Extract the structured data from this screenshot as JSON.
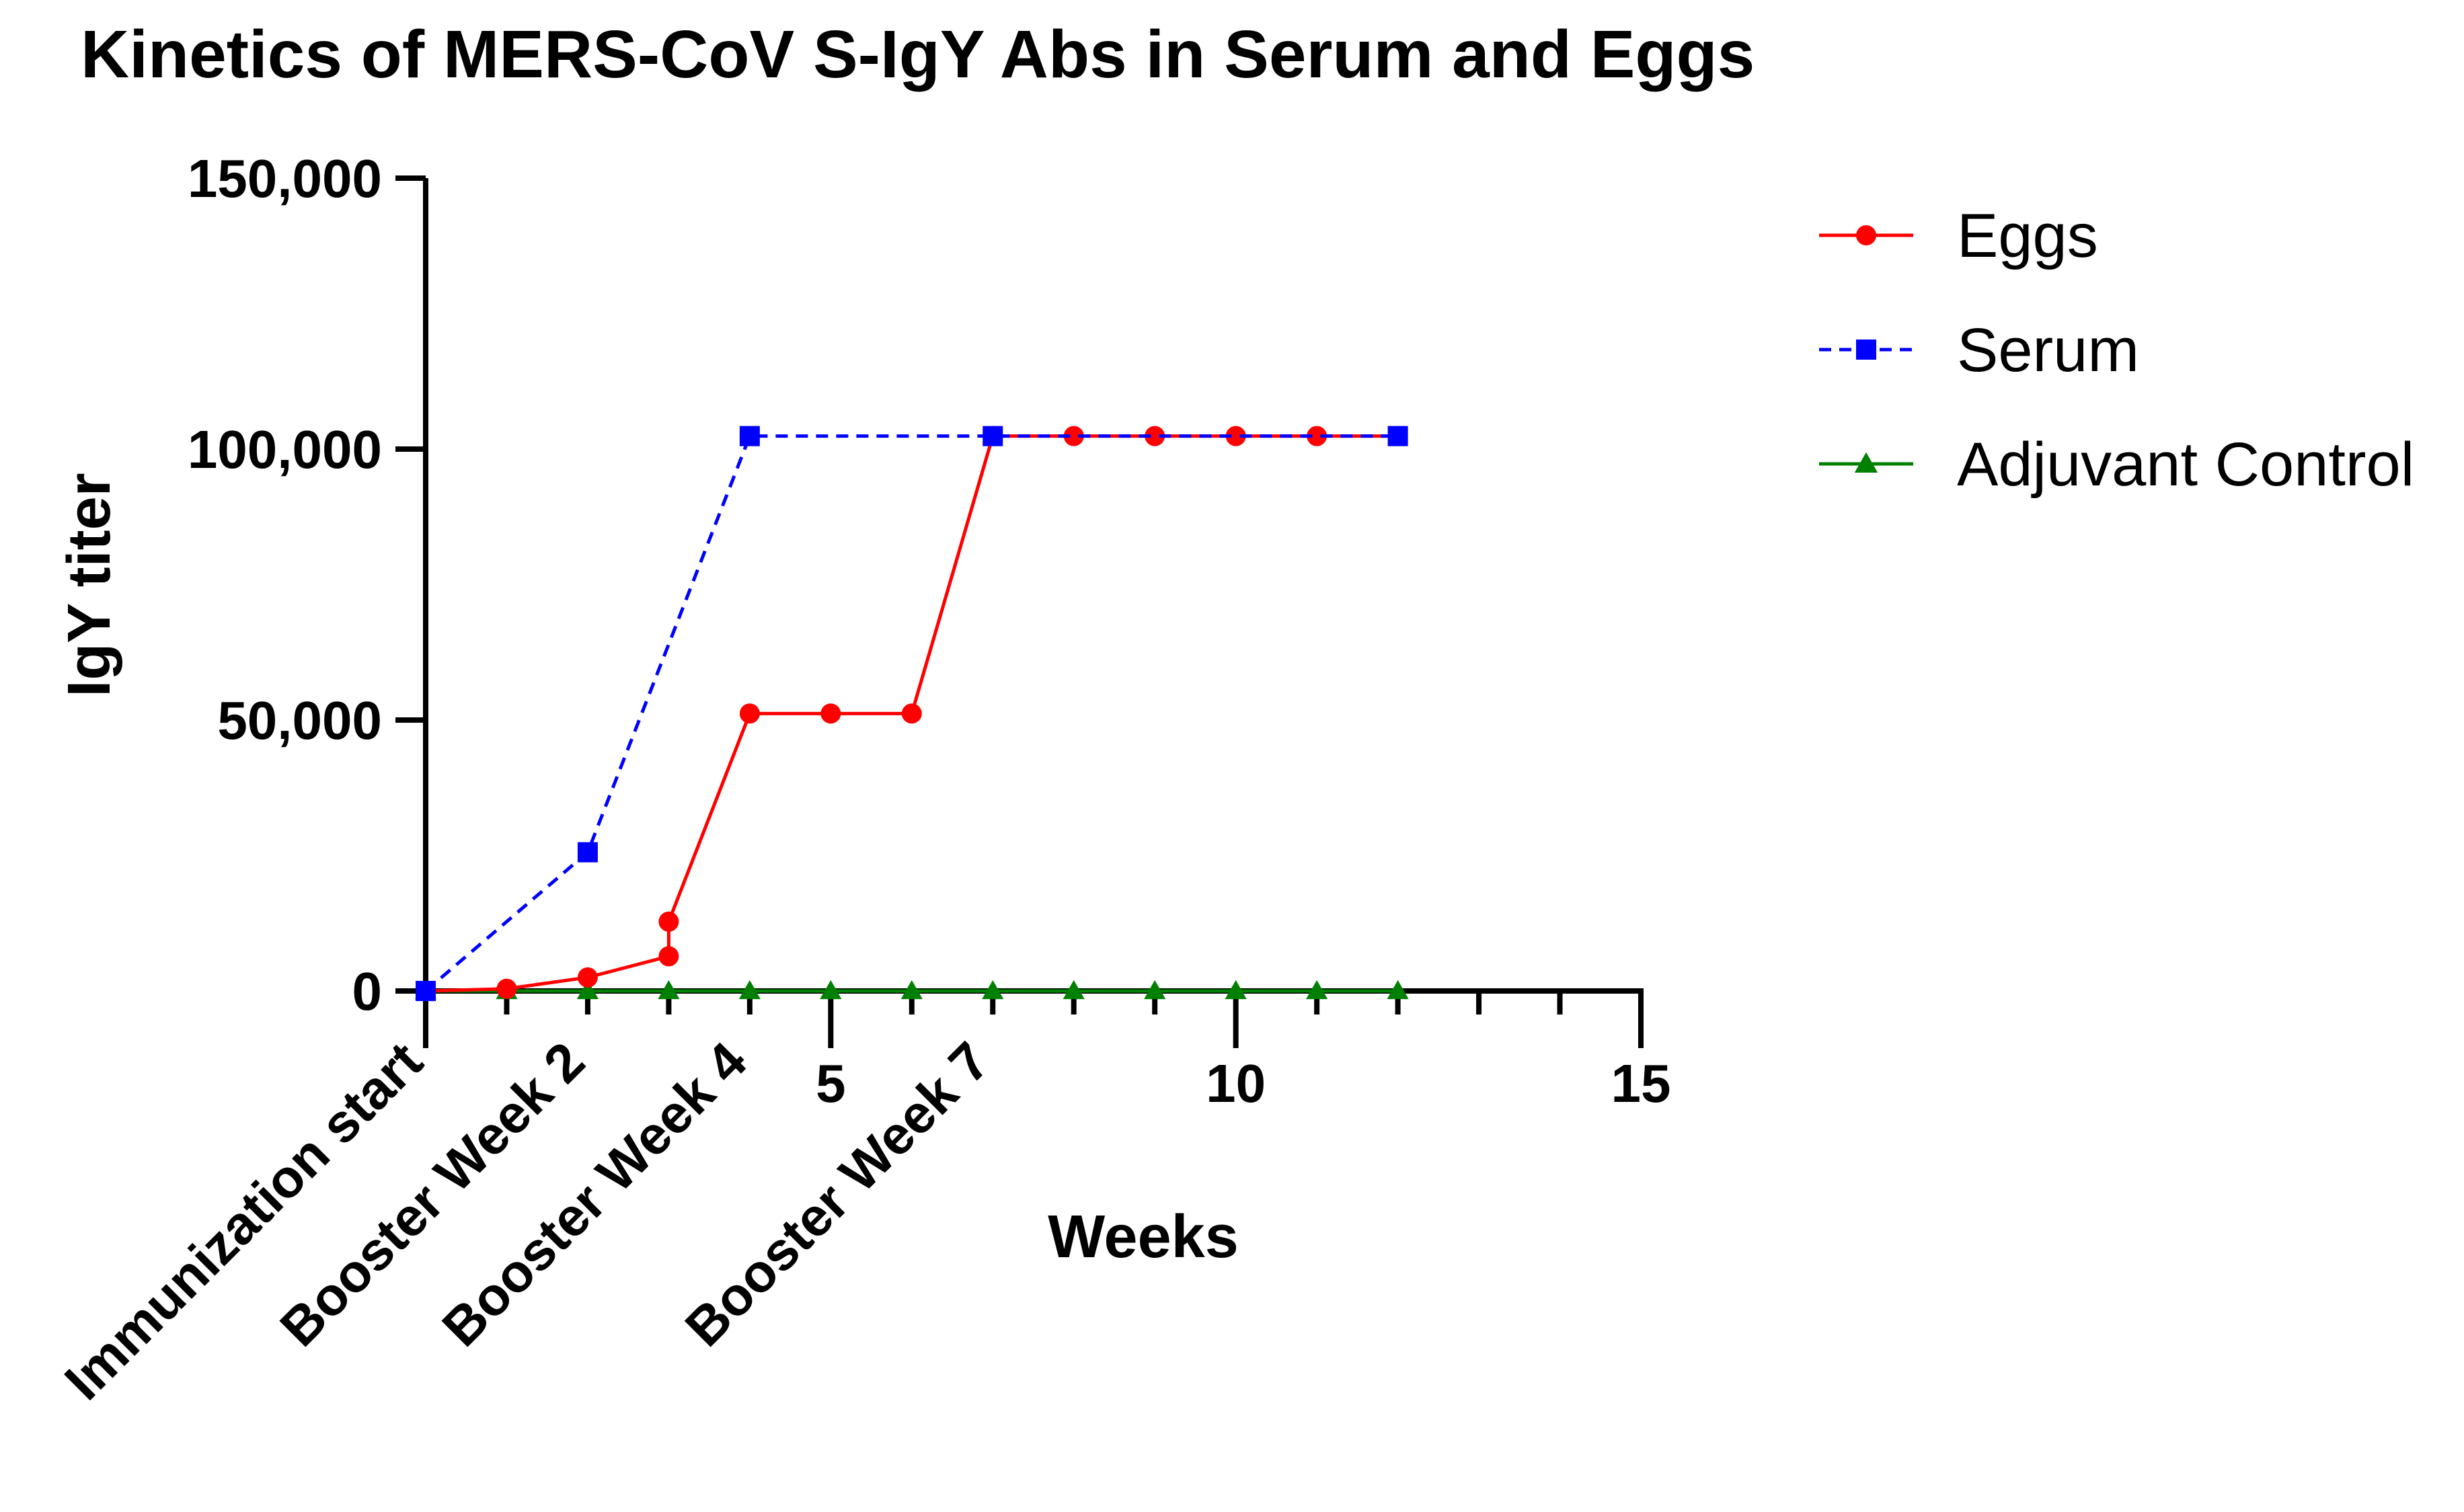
{
  "chart_data": {
    "type": "line",
    "title": "Kinetics of MERS-CoV S-IgY Abs in Serum and Eggs",
    "xlabel": "Weeks",
    "ylabel": "IgY titer",
    "xlim": [
      0,
      15
    ],
    "ylim": [
      0,
      150000
    ],
    "x_ticks": [
      {
        "value": 5,
        "label": "5"
      },
      {
        "value": 10,
        "label": "10"
      },
      {
        "value": 15,
        "label": "15"
      }
    ],
    "y_ticks": [
      {
        "value": 0,
        "label": "0"
      },
      {
        "value": 50000,
        "label": "50,000"
      },
      {
        "value": 100000,
        "label": "100,000"
      },
      {
        "value": 150000,
        "label": "150,000"
      }
    ],
    "annotations": [
      {
        "x": 0,
        "text": "Immunization start"
      },
      {
        "x": 2,
        "text": "Booster Week 2"
      },
      {
        "x": 4,
        "text": "Booster Week 4"
      },
      {
        "x": 7,
        "text": "Booster Week 7"
      }
    ],
    "legend_position": "top-right",
    "grid": false,
    "series": [
      {
        "name": "Eggs",
        "color": "#ff0000",
        "marker": "circle",
        "dash": "solid",
        "x": [
          0,
          1,
          2,
          3,
          3,
          4,
          5,
          6,
          7,
          8,
          9,
          10,
          11,
          12
        ],
        "y": [
          0,
          400,
          2500,
          6400,
          12800,
          51200,
          51200,
          51200,
          102400,
          102400,
          102400,
          102400,
          102400,
          102400
        ]
      },
      {
        "name": "Serum",
        "color": "#0000ff",
        "marker": "square",
        "dash": "dashed",
        "x": [
          0,
          2,
          4,
          7,
          12
        ],
        "y": [
          0,
          25600,
          102400,
          102400,
          102400
        ]
      },
      {
        "name": "Adjuvant Control",
        "color": "#008000",
        "marker": "triangle",
        "dash": "solid",
        "x": [
          0,
          1,
          2,
          3,
          4,
          5,
          6,
          7,
          8,
          9,
          10,
          11,
          12
        ],
        "y": [
          0,
          0,
          0,
          0,
          0,
          0,
          0,
          0,
          0,
          0,
          0,
          0,
          0
        ]
      }
    ]
  }
}
